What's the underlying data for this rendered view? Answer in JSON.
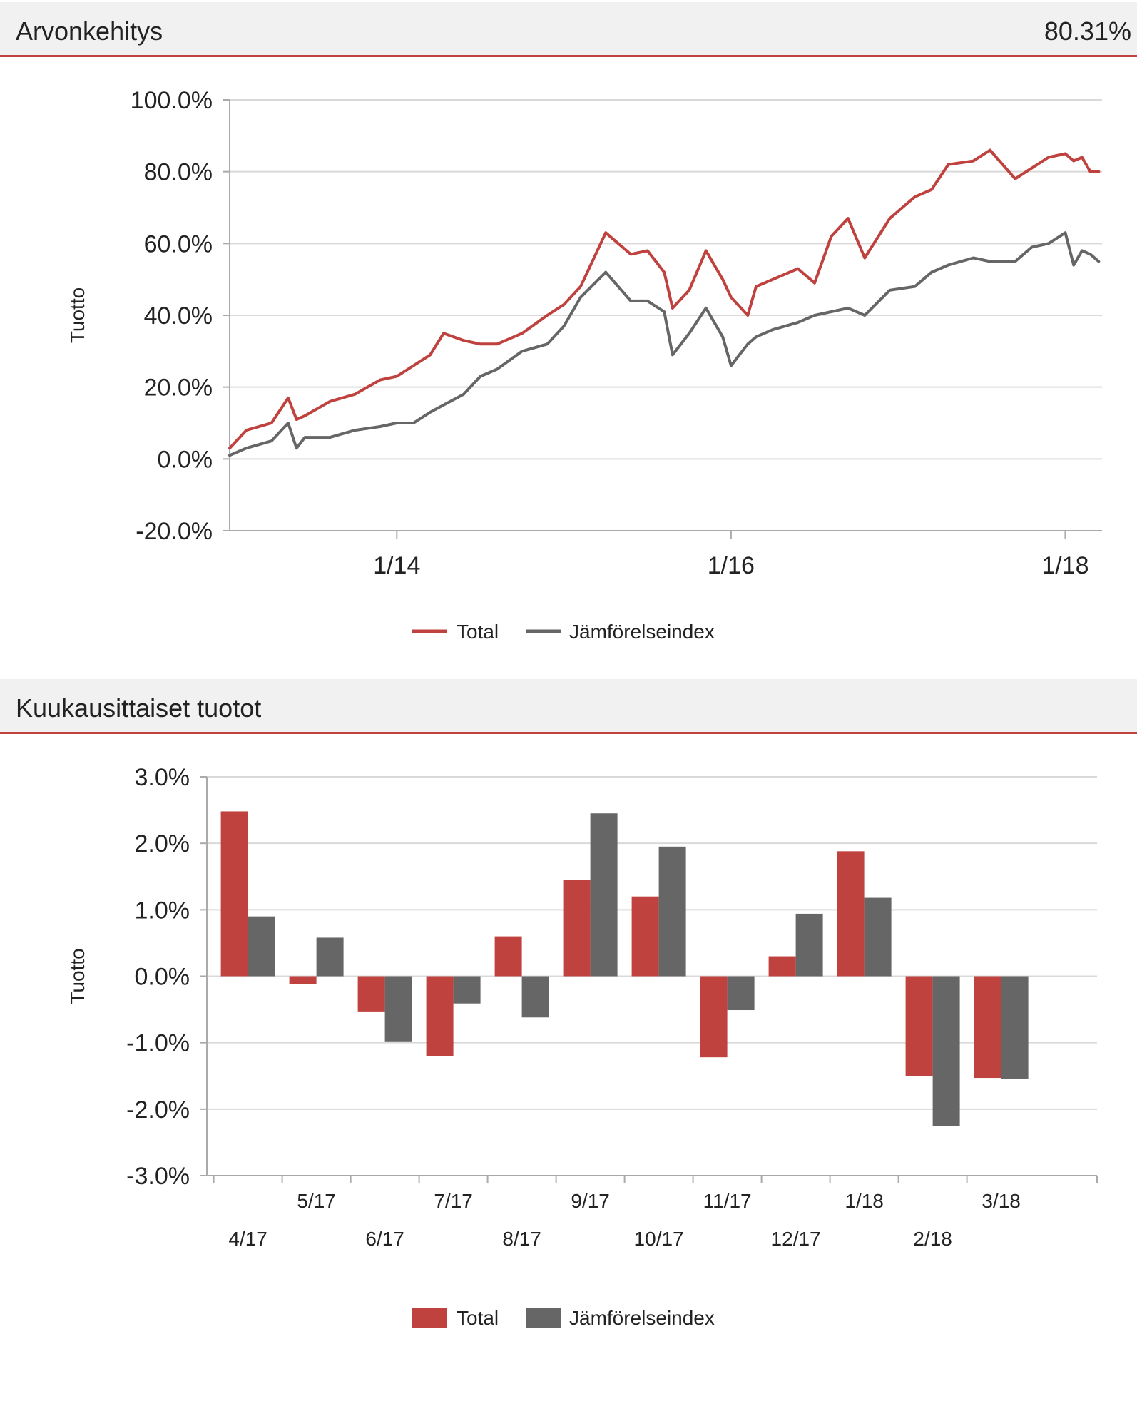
{
  "panels": [
    {
      "title": "Arvonkehitys",
      "value": "80.31%"
    },
    {
      "title": "Kuukausittaiset tuotot",
      "value": ""
    }
  ],
  "colors": {
    "total": "#c0423f",
    "index": "#666666",
    "accent": "#c0423f",
    "grid": "#d9d9d9",
    "axis": "#aaaaaa"
  },
  "chart_data": [
    {
      "type": "line",
      "title": "Arvonkehitys",
      "ylabel": "Tuotto",
      "xlabel": "",
      "ylim": [
        -20,
        100
      ],
      "yticks": [
        100,
        80,
        60,
        40,
        20,
        0,
        -20
      ],
      "ytick_labels": [
        "100.0%",
        "80.0%",
        "60.0%",
        "40.0%",
        "20.0%",
        "0.0%",
        "-20.0%"
      ],
      "xlim": [
        2013.0,
        2018.22
      ],
      "xticks": [
        2014,
        2016,
        2018
      ],
      "xtick_labels": [
        "1/14",
        "1/16",
        "1/18"
      ],
      "legend_position": "bottom",
      "grid": true,
      "series": [
        {
          "name": "Total",
          "x": [
            2013.0,
            2013.1,
            2013.25,
            2013.35,
            2013.4,
            2013.45,
            2013.6,
            2013.75,
            2013.9,
            2014.0,
            2014.1,
            2014.2,
            2014.28,
            2014.4,
            2014.5,
            2014.6,
            2014.75,
            2014.9,
            2015.0,
            2015.1,
            2015.25,
            2015.4,
            2015.5,
            2015.6,
            2015.65,
            2015.75,
            2015.85,
            2015.95,
            2016.0,
            2016.1,
            2016.15,
            2016.25,
            2016.4,
            2016.5,
            2016.6,
            2016.7,
            2016.8,
            2016.95,
            2017.1,
            2017.2,
            2017.3,
            2017.45,
            2017.55,
            2017.7,
            2017.8,
            2017.9,
            2018.0,
            2018.05,
            2018.1,
            2018.15,
            2018.2
          ],
          "values": [
            3,
            8,
            10,
            17,
            11,
            12,
            16,
            18,
            22,
            23,
            26,
            29,
            35,
            33,
            32,
            32,
            35,
            40,
            43,
            48,
            63,
            57,
            58,
            52,
            42,
            47,
            58,
            50,
            45,
            40,
            48,
            50,
            53,
            49,
            62,
            67,
            56,
            67,
            73,
            75,
            82,
            83,
            86,
            78,
            81,
            84,
            85,
            83,
            84,
            80,
            80
          ]
        },
        {
          "name": "Jämförelseindex",
          "x": [
            2013.0,
            2013.1,
            2013.25,
            2013.35,
            2013.4,
            2013.45,
            2013.6,
            2013.75,
            2013.9,
            2014.0,
            2014.1,
            2014.2,
            2014.28,
            2014.4,
            2014.5,
            2014.6,
            2014.75,
            2014.9,
            2015.0,
            2015.1,
            2015.25,
            2015.4,
            2015.5,
            2015.6,
            2015.65,
            2015.75,
            2015.85,
            2015.95,
            2016.0,
            2016.1,
            2016.15,
            2016.25,
            2016.4,
            2016.5,
            2016.6,
            2016.7,
            2016.8,
            2016.95,
            2017.1,
            2017.2,
            2017.3,
            2017.45,
            2017.55,
            2017.7,
            2017.8,
            2017.9,
            2018.0,
            2018.05,
            2018.1,
            2018.15,
            2018.2
          ],
          "values": [
            1,
            3,
            5,
            10,
            3,
            6,
            6,
            8,
            9,
            10,
            10,
            13,
            15,
            18,
            23,
            25,
            30,
            32,
            37,
            45,
            52,
            44,
            44,
            41,
            29,
            35,
            42,
            34,
            26,
            32,
            34,
            36,
            38,
            40,
            41,
            42,
            40,
            47,
            48,
            52,
            54,
            56,
            55,
            55,
            59,
            60,
            63,
            54,
            58,
            57,
            55
          ]
        }
      ]
    },
    {
      "type": "bar",
      "title": "Kuukausittaiset tuotot",
      "ylabel": "Tuotto",
      "xlabel": "",
      "ylim": [
        -3,
        3
      ],
      "yticks": [
        3,
        2,
        1,
        0,
        -1,
        -2,
        -3
      ],
      "ytick_labels": [
        "3.0%",
        "2.0%",
        "1.0%",
        "0.0%",
        "-1.0%",
        "-2.0%",
        "-3.0%"
      ],
      "categories": [
        "4/17",
        "5/17",
        "6/17",
        "7/17",
        "8/17",
        "9/17",
        "10/17",
        "11/17",
        "12/17",
        "1/18",
        "2/18",
        "3/18"
      ],
      "legend_position": "bottom",
      "grid": true,
      "series": [
        {
          "name": "Total",
          "values": [
            2.48,
            -0.12,
            -0.53,
            -1.2,
            0.6,
            1.45,
            1.2,
            -1.22,
            0.3,
            1.88,
            -1.5,
            -1.53
          ]
        },
        {
          "name": "Jämförelseindex",
          "values": [
            0.9,
            0.58,
            -0.98,
            -0.41,
            -0.62,
            2.45,
            1.95,
            -0.51,
            0.94,
            1.18,
            -2.25,
            -1.54
          ]
        }
      ]
    }
  ]
}
